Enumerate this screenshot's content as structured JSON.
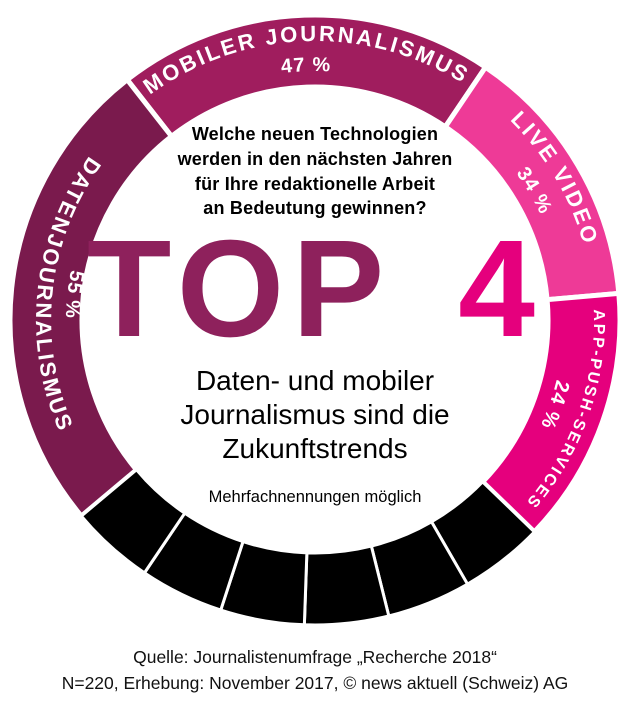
{
  "chart_data": {
    "type": "pie",
    "variant": "donut-infographic",
    "title": "TOP 4",
    "title_word": "TOP",
    "title_number": "4",
    "question": "Welche neuen Technologien\nwerden in den nächsten Jahren\nfür Ihre redaktionelle Arbeit\nan Bedeutung gewinnen?",
    "subtitle": "Daten- und mobiler\nJournalismus sind die\nZukunftstrends",
    "note": "Mehrfachnennungen möglich",
    "unit": "%",
    "legend_position": "on-ring",
    "segments": [
      {
        "id": "mobiler-journalismus",
        "label": "MOBILER JOURNALISMUS",
        "value": 47,
        "pct_label": "47 %",
        "color": "#a01d5e",
        "start_angle": -38,
        "end_angle": 34,
        "dir": "cw",
        "label_size": 22
      },
      {
        "id": "live-video",
        "label": "LIVE VIDEO",
        "value": 34,
        "pct_label": "34 %",
        "color": "#ee3a97",
        "start_angle": 34,
        "end_angle": 85,
        "dir": "cw",
        "label_size": 22
      },
      {
        "id": "app-push-services",
        "label": "APP-PUSH-SERVICES",
        "value": 24,
        "pct_label": "24 %",
        "color": "#e5007d",
        "start_angle": 85,
        "end_angle": 134,
        "dir": "cw",
        "label_size": 16
      },
      {
        "id": "datenjournalismus",
        "label": "DATENJOURNALISMUS",
        "value": 55,
        "pct_label": "55 %",
        "color": "#7a1a4d",
        "start_angle": 230,
        "end_angle": 322,
        "dir": "ccw",
        "label_size": 22
      }
    ],
    "other_segments": {
      "color": "#000000",
      "start_angle": 134,
      "end_angle": 230,
      "count": 6
    },
    "colors": {
      "title_word": "#8e215c",
      "title_number": "#e5007d",
      "label_text": "#ffffff",
      "background": "#ffffff"
    }
  },
  "footer": {
    "line1": "Quelle: Journalistenumfrage „Recherche 2018“",
    "line2": "N=220, Erhebung: November 2017, © news aktuell (Schweiz) AG"
  }
}
